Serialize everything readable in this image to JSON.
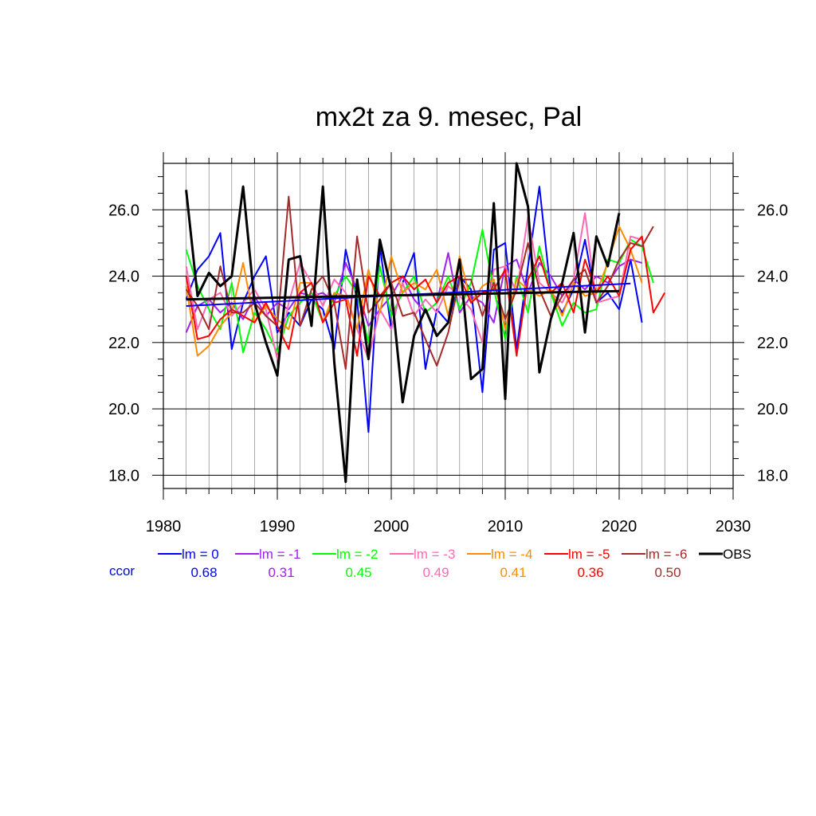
{
  "chart_data": {
    "type": "line",
    "title": "mx2t za 9. mesec, Pal",
    "xlabel": "",
    "ylabel": "",
    "xlim": [
      1980,
      2030
    ],
    "ylim": [
      17.6,
      27.4
    ],
    "x_ticks": [
      1980,
      1990,
      2000,
      2010,
      2020,
      2030
    ],
    "x_tick_labels": [
      "1980",
      "1990",
      "2000",
      "2010",
      "2020",
      "2030"
    ],
    "y_ticks": [
      18,
      20,
      22,
      24,
      26
    ],
    "y_tick_labels": [
      "18.0",
      "20.0",
      "22.0",
      "24.0",
      "26.0"
    ],
    "grid": true,
    "ccor_label": "ccor",
    "series": [
      {
        "name": "lm = 0",
        "color": "#0000ff",
        "ccor": "0.68",
        "x_start": 1982,
        "values": [
          23.3,
          24.2,
          24.6,
          25.3,
          21.8,
          23.2,
          24.0,
          24.6,
          22.3,
          22.9,
          22.5,
          23.3,
          23.0,
          21.8,
          24.8,
          23.3,
          19.3,
          24.9,
          22.4,
          23.8,
          24.7,
          21.2,
          23.0,
          22.6,
          24.0,
          23.6,
          20.5,
          24.8,
          25.0,
          21.8,
          24.3,
          26.7,
          23.5,
          22.9,
          23.6,
          25.1,
          23.2,
          23.5,
          23.0,
          24.5,
          22.6
        ]
      },
      {
        "name": "lm = -1",
        "color": "#a020f0",
        "ccor": "0.31",
        "x_start": 1982,
        "values": [
          22.3,
          23.1,
          23.3,
          22.9,
          23.2,
          22.7,
          23.4,
          22.8,
          23.2,
          23.0,
          23.5,
          23.4,
          23.5,
          23.2,
          24.4,
          23.6,
          22.5,
          23.0,
          23.4,
          24.0,
          23.3,
          22.9,
          23.2,
          24.7,
          22.9,
          23.4,
          23.2,
          22.6,
          24.3,
          24.5,
          23.5,
          24.4,
          24.0,
          23.4,
          23.9,
          23.6,
          24.0,
          23.8,
          24.3,
          24.5,
          24.4
        ]
      },
      {
        "name": "lm = -2",
        "color": "#00ff00",
        "ccor": "0.45",
        "x_start": 1982,
        "values": [
          24.8,
          23.7,
          23.0,
          22.4,
          23.8,
          21.7,
          22.9,
          22.4,
          21.7,
          22.8,
          23.2,
          23.5,
          22.6,
          23.4,
          24.0,
          23.5,
          22.0,
          24.3,
          22.8,
          23.5,
          24.0,
          22.9,
          23.2,
          24.0,
          23.0,
          23.8,
          25.4,
          23.6,
          22.1,
          24.0,
          22.9,
          24.9,
          23.5,
          22.5,
          23.2,
          22.9,
          23.0,
          24.5,
          24.4,
          25.1,
          24.9,
          23.8
        ]
      },
      {
        "name": "lm = -3",
        "color": "#ff69b4",
        "ccor": "0.49",
        "x_start": 1982,
        "values": [
          24.3,
          22.4,
          23.3,
          23.5,
          22.8,
          23.2,
          23.6,
          23.0,
          21.5,
          23.2,
          24.4,
          23.8,
          23.1,
          23.9,
          23.5,
          22.4,
          21.5,
          23.0,
          22.4,
          23.8,
          22.8,
          23.3,
          22.9,
          23.7,
          23.4,
          23.0,
          22.0,
          24.2,
          24.3,
          23.5,
          25.8,
          23.8,
          23.5,
          23.2,
          23.9,
          25.9,
          23.2,
          23.3,
          23.4,
          25.2,
          25.1
        ]
      },
      {
        "name": "lm = -4",
        "color": "#ff8c00",
        "ccor": "0.41",
        "x_start": 1982,
        "values": [
          23.7,
          21.6,
          21.9,
          22.5,
          22.9,
          24.4,
          22.6,
          23.1,
          22.7,
          22.4,
          23.8,
          23.8,
          22.6,
          23.5,
          23.4,
          22.4,
          24.2,
          22.9,
          24.6,
          23.5,
          23.8,
          23.6,
          24.2,
          22.8,
          24.6,
          23.2,
          23.7,
          23.9,
          22.4,
          23.9,
          23.6,
          23.4,
          23.6,
          22.8,
          23.8,
          23.4,
          23.5,
          24.4,
          25.5,
          24.8,
          23.8
        ]
      },
      {
        "name": "lm = -5",
        "color": "#ff0000",
        "ccor": "0.36",
        "x_start": 1982,
        "values": [
          24.0,
          22.1,
          22.2,
          22.7,
          23.0,
          22.8,
          22.6,
          23.2,
          22.5,
          21.8,
          23.5,
          23.8,
          22.6,
          23.2,
          23.3,
          21.6,
          24.0,
          23.4,
          23.8,
          24.0,
          23.6,
          23.9,
          23.2,
          23.8,
          24.0,
          23.2,
          23.5,
          23.6,
          24.2,
          21.6,
          23.9,
          24.6,
          23.5,
          23.8,
          22.9,
          24.5,
          23.5,
          24.0,
          23.4,
          24.8,
          25.2,
          22.9,
          23.5
        ]
      },
      {
        "name": "lm = -6",
        "color": "#a52a2a",
        "ccor": "0.50",
        "x_start": 1982,
        "values": [
          23.6,
          23.1,
          22.4,
          24.3,
          22.9,
          22.9,
          23.2,
          22.8,
          22.5,
          26.4,
          22.5,
          23.6,
          24.0,
          23.2,
          21.2,
          25.2,
          22.9,
          23.3,
          23.8,
          22.8,
          22.9,
          22.1,
          21.3,
          22.3,
          23.9,
          23.9,
          22.8,
          23.8,
          22.7,
          23.6,
          25.0,
          23.6,
          22.8,
          23.4,
          23.9,
          24.2,
          23.2,
          23.7,
          24.5,
          25.0,
          24.9,
          25.5
        ]
      },
      {
        "name": "OBS",
        "color": "#000000",
        "ccor": "",
        "x_start": 1982,
        "values": [
          26.6,
          23.4,
          24.1,
          23.7,
          24.0,
          26.7,
          23.2,
          22.0,
          21.0,
          24.5,
          24.6,
          22.5,
          26.7,
          21.4,
          17.8,
          23.9,
          21.5,
          25.1,
          23.6,
          20.2,
          22.2,
          23.0,
          22.2,
          22.6,
          24.5,
          20.9,
          21.2,
          26.2,
          20.3,
          27.4,
          26.1,
          21.1,
          22.7,
          23.8,
          25.3,
          22.3,
          25.2,
          24.3,
          25.9
        ]
      }
    ],
    "trend_lines": [
      {
        "series": "lm = 0",
        "x": [
          1982,
          2021
        ],
        "y": [
          23.1,
          23.78
        ]
      },
      {
        "series": "OBS",
        "x": [
          1982,
          2020
        ],
        "y": [
          23.3,
          23.55
        ]
      }
    ]
  }
}
